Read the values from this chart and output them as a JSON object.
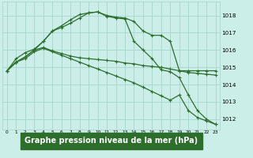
{
  "background_color": "#cceee8",
  "plot_bg_color": "#cceee8",
  "grid_color": "#aad8d0",
  "line_color": "#2d6e2d",
  "xlabel": "Graphe pression niveau de la mer (hPa)",
  "xlabel_fontsize": 7.0,
  "xlabel_bg": "#2d6e2d",
  "xlabel_fg": "#ffffff",
  "ylim": [
    1011.4,
    1018.8
  ],
  "xlim": [
    -0.5,
    23.5
  ],
  "yticks": [
    1012,
    1013,
    1014,
    1015,
    1016,
    1017,
    1018
  ],
  "xticks": [
    0,
    1,
    2,
    3,
    4,
    5,
    6,
    7,
    8,
    9,
    10,
    11,
    12,
    13,
    14,
    15,
    16,
    17,
    18,
    19,
    20,
    21,
    22,
    23
  ],
  "series": [
    [
      1014.8,
      1015.3,
      1015.6,
      1016.0,
      1016.5,
      1017.1,
      1017.4,
      1017.75,
      1018.05,
      1018.15,
      1018.2,
      1018.0,
      1017.9,
      1017.85,
      1017.65,
      1017.1,
      1016.85,
      1016.85,
      1016.5,
      1014.8,
      1014.8,
      1014.8,
      1014.8,
      1014.8
    ],
    [
      1014.8,
      1015.3,
      1015.6,
      1016.0,
      1016.15,
      1015.95,
      1015.8,
      1015.65,
      1015.55,
      1015.5,
      1015.45,
      1015.4,
      1015.35,
      1015.25,
      1015.2,
      1015.1,
      1015.05,
      1015.0,
      1014.9,
      1014.8,
      1014.7,
      1014.65,
      1014.6,
      1014.55
    ],
    [
      1014.8,
      1015.3,
      1015.5,
      1015.9,
      1016.1,
      1015.9,
      1015.7,
      1015.5,
      1015.3,
      1015.1,
      1014.9,
      1014.7,
      1014.5,
      1014.3,
      1014.1,
      1013.85,
      1013.6,
      1013.35,
      1013.1,
      1013.4,
      1012.5,
      1012.1,
      1011.9,
      1011.7
    ],
    [
      1014.8,
      1015.5,
      1015.85,
      1016.05,
      1016.5,
      1017.1,
      1017.3,
      1017.55,
      1017.85,
      1018.15,
      1018.2,
      1017.95,
      1017.85,
      1017.8,
      1016.5,
      1016.0,
      1015.5,
      1014.85,
      1014.75,
      1014.4,
      1013.4,
      1012.5,
      1012.0,
      1011.7
    ]
  ]
}
